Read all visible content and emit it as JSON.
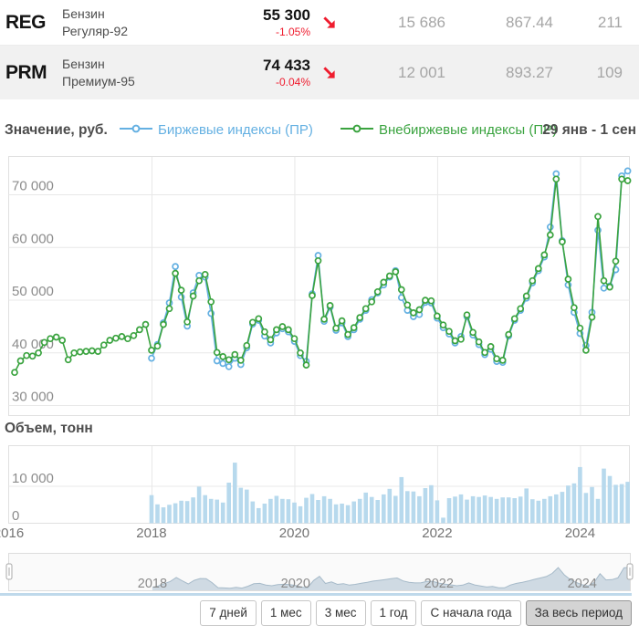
{
  "quotes": [
    {
      "ticker": "REG",
      "name_line1": "Бензин",
      "name_line2": "Регуляр-92",
      "price": "55 300",
      "change_pct": "-1.05%",
      "trend": "down",
      "value1": "15 686",
      "value2": "867.44",
      "value3": "211"
    },
    {
      "ticker": "PRM",
      "name_line1": "Бензин",
      "name_line2": "Премиум-95",
      "price": "74 433",
      "change_pct": "-0.04%",
      "trend": "down",
      "value1": "12 001",
      "value2": "893.27",
      "value3": "109"
    }
  ],
  "chart_header": {
    "y_axis_title": "Значение, руб.",
    "date_range": "29 янв - 1 сен"
  },
  "volume_title": "Объем, тонн",
  "controls": {
    "buttons": [
      {
        "label": "7 дней",
        "active": false
      },
      {
        "label": "1 мес",
        "active": false
      },
      {
        "label": "3 мес",
        "active": false
      },
      {
        "label": "1 год",
        "active": false
      },
      {
        "label": "С начала года",
        "active": false
      },
      {
        "label": "За весь период",
        "active": true
      }
    ]
  },
  "colors": {
    "exchange_series": "#64b0e2",
    "otc_series": "#3aa33f",
    "negative_red": "#ef1c2e",
    "volume_bar": "#b7d9ed",
    "grid": "#e8e8e8",
    "axis_text": "#8c8c8c",
    "navigator_fill": "#cfdae3",
    "navigator_line": "#a6bac9"
  },
  "chart_data": [
    {
      "type": "line",
      "title": "Значение, руб.",
      "x_interval": "monthly",
      "x_range": [
        "2016-02",
        "2024-09"
      ],
      "xticks": [
        2016,
        2018,
        2020,
        2022,
        2024
      ],
      "yticks": [
        30000,
        40000,
        50000,
        60000,
        70000
      ],
      "ylim": [
        30000,
        77000
      ],
      "legend_position": "top",
      "grid": true,
      "series": [
        {
          "name": "Биржевые индексы (ПР)",
          "color": "#64b0e2",
          "x_start": "2018-01",
          "values": [
            38900,
            41500,
            45600,
            49400,
            56300,
            50500,
            45000,
            51300,
            54600,
            54300,
            47400,
            38400,
            37900,
            37300,
            38900,
            37700,
            40900,
            45400,
            46100,
            43100,
            41800,
            43700,
            44500,
            43900,
            42100,
            39400,
            38300,
            51100,
            58400,
            45900,
            48600,
            44200,
            45600,
            43000,
            44300,
            46300,
            48000,
            50000,
            51300,
            52800,
            54300,
            55500,
            50400,
            48000,
            46800,
            47200,
            49500,
            49400,
            46500,
            44700,
            43500,
            41800,
            43000,
            46800,
            43300,
            41500,
            39600,
            40600,
            38300,
            38100,
            43100,
            46100,
            48000,
            50300,
            53200,
            55500,
            58100,
            63800,
            73900,
            61200,
            52800,
            47600,
            43600,
            41300,
            47600,
            63200,
            52200,
            52600,
            55700,
            73500,
            74433
          ]
        },
        {
          "name": "Внебиржевые индексы (ПР)",
          "color": "#3aa33f",
          "x_start": "2016-02",
          "values": [
            36200,
            38400,
            39400,
            39300,
            39900,
            41900,
            42600,
            42900,
            42300,
            38600,
            39900,
            40100,
            40200,
            40300,
            40200,
            41400,
            42300,
            42700,
            43000,
            42600,
            43200,
            44300,
            45300,
            40400,
            41200,
            45300,
            48300,
            55000,
            51800,
            45800,
            50700,
            53600,
            54800,
            49600,
            40000,
            39200,
            38600,
            39600,
            38500,
            41300,
            45700,
            46400,
            43900,
            42400,
            44300,
            44900,
            44300,
            42600,
            39900,
            37600,
            50800,
            57400,
            46300,
            48900,
            44600,
            46000,
            43400,
            44700,
            46600,
            48300,
            49600,
            51500,
            53300,
            54500,
            55300,
            51900,
            49000,
            47500,
            48100,
            49900,
            49800,
            46900,
            45200,
            44000,
            42200,
            42500,
            47100,
            43800,
            42000,
            40000,
            41100,
            38800,
            38500,
            43400,
            46400,
            48300,
            50700,
            53600,
            55900,
            58500,
            62300,
            72900,
            61000,
            53900,
            48500,
            44600,
            40400,
            46700,
            65800,
            53600,
            52400,
            57300,
            72900,
            72600
          ]
        }
      ]
    },
    {
      "type": "bar",
      "title": "Объем, тонн",
      "x_interval": "monthly",
      "x_start": "2018-01",
      "yticks": [
        0,
        10000
      ],
      "color": "#b7d9ed",
      "values": [
        7600,
        5100,
        4300,
        5000,
        5400,
        6100,
        6000,
        7000,
        9900,
        7600,
        6600,
        6400,
        5600,
        11000,
        16400,
        9600,
        9100,
        5900,
        4100,
        5300,
        6600,
        7400,
        6600,
        6500,
        5600,
        4600,
        6900,
        7900,
        6300,
        7300,
        6600,
        5100,
        5300,
        4900,
        5900,
        6600,
        8300,
        7100,
        6300,
        7800,
        9300,
        7400,
        12500,
        8700,
        8600,
        7300,
        9500,
        10300,
        6200,
        1500,
        6800,
        7200,
        7800,
        6400,
        7300,
        7100,
        7500,
        7100,
        6600,
        7000,
        7000,
        6800,
        7200,
        9400,
        6500,
        6100,
        6600,
        7300,
        7800,
        8500,
        10200,
        10800,
        15200,
        8200,
        9800,
        6600,
        14800,
        12800,
        10400,
        10600,
        11200
      ]
    },
    {
      "type": "area",
      "role": "navigator",
      "x_interval": "monthly",
      "x_start": "2018-01",
      "xticks": [
        2018,
        2020,
        2022,
        2024
      ],
      "source": "miniature of exchange index series (series 0 above)"
    }
  ]
}
